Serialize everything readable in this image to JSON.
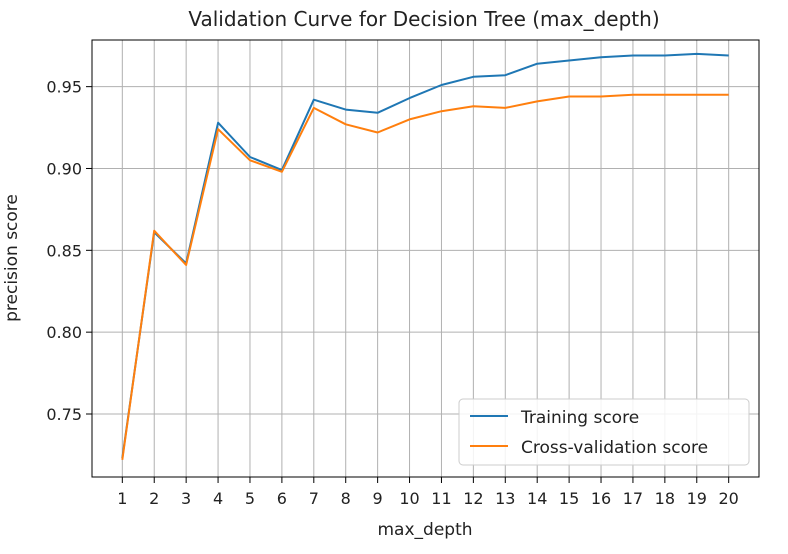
{
  "chart_data": {
    "type": "line",
    "title": "Validation Curve for Decision Tree (max_depth)",
    "xlabel": "max_depth",
    "ylabel": "precision score",
    "x": [
      1,
      2,
      3,
      4,
      5,
      6,
      7,
      8,
      9,
      10,
      11,
      12,
      13,
      14,
      15,
      16,
      17,
      18,
      19,
      20
    ],
    "xlim": [
      0.05,
      20.95
    ],
    "ylim": [
      0.7115,
      0.9785
    ],
    "yticks": [
      0.75,
      0.8,
      0.85,
      0.9,
      0.95
    ],
    "ytick_labels": [
      "0.75",
      "0.80",
      "0.85",
      "0.90",
      "0.95"
    ],
    "grid": true,
    "legend_position": "lower-right",
    "series": [
      {
        "name": "Training score",
        "color": "#1f77b4",
        "values": [
          0.723,
          0.861,
          0.842,
          0.928,
          0.907,
          0.899,
          0.942,
          0.936,
          0.934,
          0.943,
          0.951,
          0.956,
          0.957,
          0.964,
          0.966,
          0.968,
          0.969,
          0.969,
          0.97,
          0.969
        ]
      },
      {
        "name": "Cross-validation score",
        "color": "#ff7f0e",
        "values": [
          0.722,
          0.862,
          0.841,
          0.924,
          0.905,
          0.898,
          0.937,
          0.927,
          0.922,
          0.93,
          0.935,
          0.938,
          0.937,
          0.941,
          0.944,
          0.944,
          0.945,
          0.945,
          0.945,
          0.945
        ]
      }
    ]
  }
}
